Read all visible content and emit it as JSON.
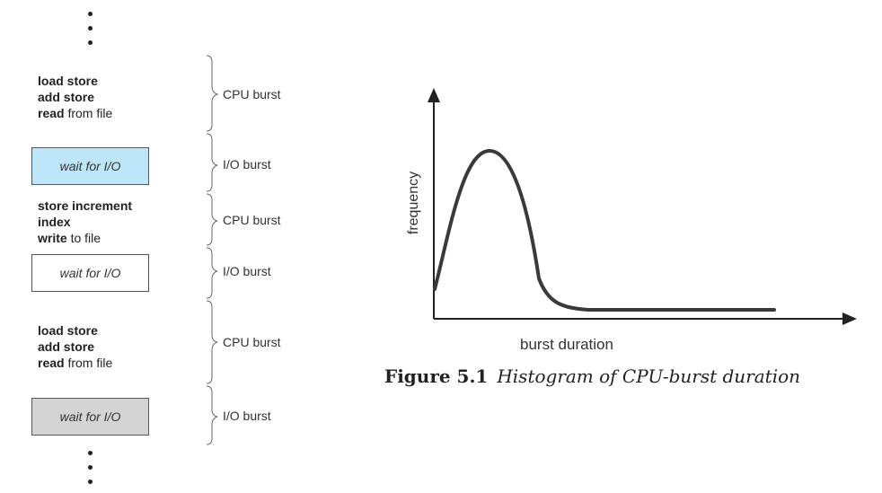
{
  "sequence": {
    "blocks": [
      {
        "type": "cpu",
        "lines": [
          {
            "bold": "load store",
            "rest": ""
          },
          {
            "bold": "add store",
            "rest": ""
          },
          {
            "bold": "read",
            "rest": " from file"
          }
        ],
        "label": "CPU burst"
      },
      {
        "type": "io",
        "text": "wait for I/O",
        "fill": "#bfe6f8",
        "label": "I/O burst"
      },
      {
        "type": "cpu",
        "lines": [
          {
            "bold": "store increment",
            "rest": ""
          },
          {
            "bold": "index",
            "rest": ""
          },
          {
            "bold": "write",
            "rest": " to file"
          }
        ],
        "label": "CPU burst"
      },
      {
        "type": "io",
        "text": "wait for I/O",
        "fill": "#ffffff",
        "label": "I/O burst"
      },
      {
        "type": "cpu",
        "lines": [
          {
            "bold": "load store",
            "rest": ""
          },
          {
            "bold": "add store",
            "rest": ""
          },
          {
            "bold": "read",
            "rest": " from file"
          }
        ],
        "label": "CPU burst"
      },
      {
        "type": "io",
        "text": "wait for I/O",
        "fill": "#d4d4d4",
        "label": "I/O burst"
      }
    ]
  },
  "histogram": {
    "ylabel": "frequency",
    "xlabel": "burst duration"
  },
  "caption": {
    "number": "Figure 5.1",
    "text": "Histogram of CPU-burst duration"
  }
}
